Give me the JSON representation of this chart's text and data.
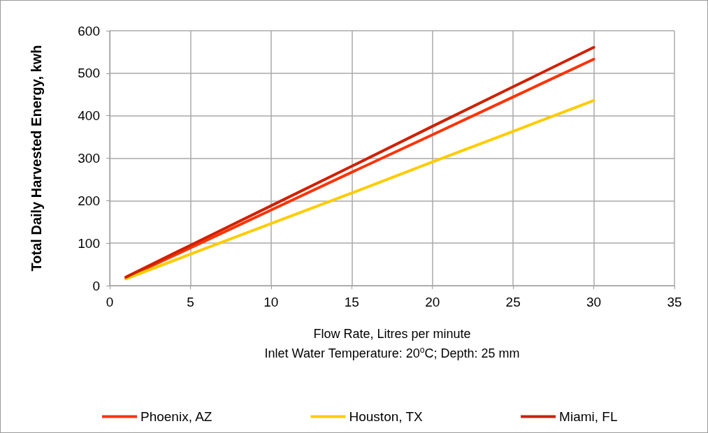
{
  "chart_data": {
    "type": "line",
    "xlabel": "Flow Rate, Litres per minute\nInlet Water Temperature: 20$^{o}$C; Depth: 25 mm",
    "ylabel": "Total Daily Harvested Energy, kwh",
    "x": [
      1,
      5,
      10,
      15,
      20,
      25,
      30
    ],
    "series": [
      {
        "name": "Phoenix, AZ",
        "color": "#ff3300",
        "values": [
          18,
          89,
          178,
          267,
          355,
          444,
          533
        ]
      },
      {
        "name": "Houston, TX",
        "color": "#ffcc00",
        "values": [
          16,
          74,
          146,
          218,
          291,
          363,
          436
        ]
      },
      {
        "name": "Miami, FL",
        "color": "#cc2200",
        "values": [
          20,
          95,
          188,
          281,
          375,
          468,
          561
        ]
      }
    ],
    "xlim": [
      0,
      35
    ],
    "xticks": [
      0,
      5,
      10,
      15,
      20,
      25,
      30,
      35
    ],
    "ylim": [
      0,
      600
    ],
    "yticks": [
      0,
      100,
      200,
      300,
      400,
      500,
      600
    ],
    "grid": true,
    "legend": "bottom",
    "marker": "none",
    "line_style": "solid"
  }
}
